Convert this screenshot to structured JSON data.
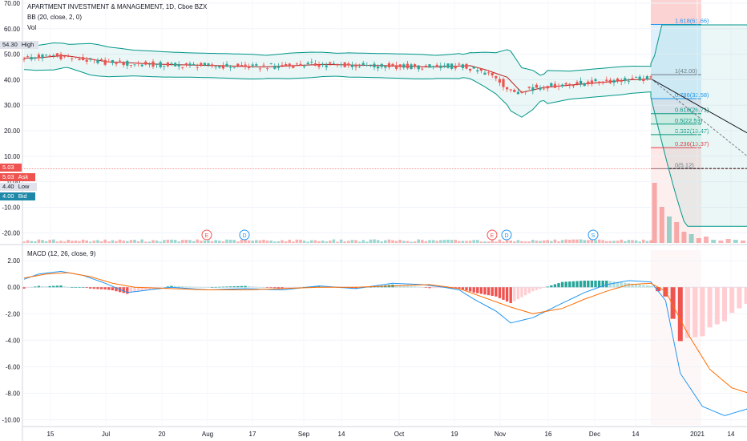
{
  "header": {
    "title": "APARTMENT INVESTMENT & MANAGEMENT, 1D, Cboe BZX",
    "bb_label": "BB (20, close, 2, 0)",
    "vol_label": "Vol",
    "macd_label": "MACD (12, 26, close, 9)"
  },
  "badges": [
    {
      "value": "54.30",
      "label": "High"
    },
    {
      "value": "5.03",
      "label": ""
    },
    {
      "value": "5.03",
      "label": "Ask"
    },
    {
      "value": "4.40",
      "label": "Low"
    },
    {
      "value": "4.00",
      "label": "Bid"
    }
  ],
  "colors": {
    "up": "#26a69a",
    "down": "#ef5350",
    "bb_basis": "#b71c1c",
    "bb_band": "#009688",
    "macd_line": "#2196f3",
    "signal_line": "#ff6d00",
    "projection_red": "#f23645",
    "projection_blue": "#2196f3"
  },
  "chart_data": [
    {
      "type": "candlestick",
      "y_ticks": [
        "70.00",
        "60.00",
        "50.00",
        "40.00",
        "30.00",
        "20.00",
        "10.00",
        "0.00",
        "-10.00",
        "-20.00"
      ],
      "ylim": [
        -24,
        70
      ],
      "x_ticks": [
        "15",
        "Jul",
        "20",
        "Aug",
        "17",
        "Sep",
        "14",
        "Oct",
        "19",
        "Nov",
        "16",
        "Dec",
        "14",
        "2021",
        "14"
      ],
      "close_trend": [
        [
          0,
          48.5
        ],
        [
          8,
          49.5
        ],
        [
          20,
          47.0
        ],
        [
          35,
          46.0
        ],
        [
          50,
          45.5
        ],
        [
          62,
          45.0
        ],
        [
          78,
          46.0
        ],
        [
          95,
          45.5
        ],
        [
          108,
          45.0
        ],
        [
          118,
          45.5
        ],
        [
          122,
          44.0
        ],
        [
          128,
          41.0
        ],
        [
          132,
          35.0
        ],
        [
          138,
          37.0
        ],
        [
          150,
          38.5
        ],
        [
          162,
          40.0
        ],
        [
          170,
          40.4
        ]
      ],
      "fib_levels": [
        {
          "label": "1.618(61.66)",
          "value": 61.66
        },
        {
          "label": "1(42.00)",
          "value": 42.0
        },
        {
          "label": "0.786(32.58)",
          "value": 32.58
        },
        {
          "label": "0.618(26.71)",
          "value": 26.71
        },
        {
          "label": "0.5(22.59)",
          "value": 22.59
        },
        {
          "label": "0.382(18.47)",
          "value": 18.47
        },
        {
          "label": "0.236(13.37)",
          "value": 13.37
        },
        {
          "label": "0(5.12)",
          "value": 5.12
        }
      ],
      "events": [
        {
          "label": "E",
          "kind": "earnings"
        },
        {
          "label": "D",
          "kind": "dividend"
        },
        {
          "label": "E",
          "kind": "earnings"
        },
        {
          "label": "D",
          "kind": "dividend"
        },
        {
          "label": "S",
          "kind": "split"
        }
      ]
    },
    {
      "type": "macd",
      "y_ticks": [
        "2.00",
        "0.00",
        "-2.00",
        "-4.00",
        "-6.00",
        "-8.00",
        "-10.00"
      ],
      "ylim": [
        -10.4,
        2.8
      ],
      "macd_line": [
        [
          0,
          0.6
        ],
        [
          4,
          1.0
        ],
        [
          10,
          1.2
        ],
        [
          16,
          0.9
        ],
        [
          22,
          0.3
        ],
        [
          28,
          -0.4
        ],
        [
          34,
          -0.2
        ],
        [
          40,
          0.0
        ],
        [
          50,
          -0.2
        ],
        [
          60,
          -0.1
        ],
        [
          70,
          -0.2
        ],
        [
          80,
          0.1
        ],
        [
          90,
          -0.1
        ],
        [
          100,
          0.3
        ],
        [
          108,
          0.2
        ],
        [
          114,
          0.0
        ],
        [
          118,
          -0.2
        ],
        [
          122,
          -0.9
        ],
        [
          128,
          -1.8
        ],
        [
          132,
          -2.7
        ],
        [
          138,
          -2.3
        ],
        [
          146,
          -1.2
        ],
        [
          152,
          -0.4
        ],
        [
          158,
          0.2
        ],
        [
          164,
          0.5
        ],
        [
          170,
          0.4
        ],
        [
          174,
          -1.0
        ],
        [
          178,
          -6.5
        ],
        [
          184,
          -9.0
        ],
        [
          190,
          -9.7
        ],
        [
          196,
          -9.2
        ],
        [
          200,
          -8.4
        ]
      ],
      "signal_line": [
        [
          0,
          0.7
        ],
        [
          6,
          1.0
        ],
        [
          12,
          1.1
        ],
        [
          18,
          0.8
        ],
        [
          24,
          0.3
        ],
        [
          30,
          0.0
        ],
        [
          40,
          -0.1
        ],
        [
          50,
          -0.2
        ],
        [
          60,
          -0.2
        ],
        [
          70,
          -0.1
        ],
        [
          80,
          0.0
        ],
        [
          90,
          0.0
        ],
        [
          100,
          0.1
        ],
        [
          110,
          0.2
        ],
        [
          118,
          -0.1
        ],
        [
          124,
          -0.7
        ],
        [
          132,
          -1.5
        ],
        [
          138,
          -2.0
        ],
        [
          146,
          -1.6
        ],
        [
          152,
          -0.9
        ],
        [
          158,
          -0.3
        ],
        [
          164,
          0.2
        ],
        [
          170,
          0.3
        ],
        [
          174,
          -0.3
        ],
        [
          180,
          -3.5
        ],
        [
          186,
          -6.2
        ],
        [
          192,
          -7.6
        ],
        [
          200,
          -8.3
        ]
      ]
    }
  ]
}
